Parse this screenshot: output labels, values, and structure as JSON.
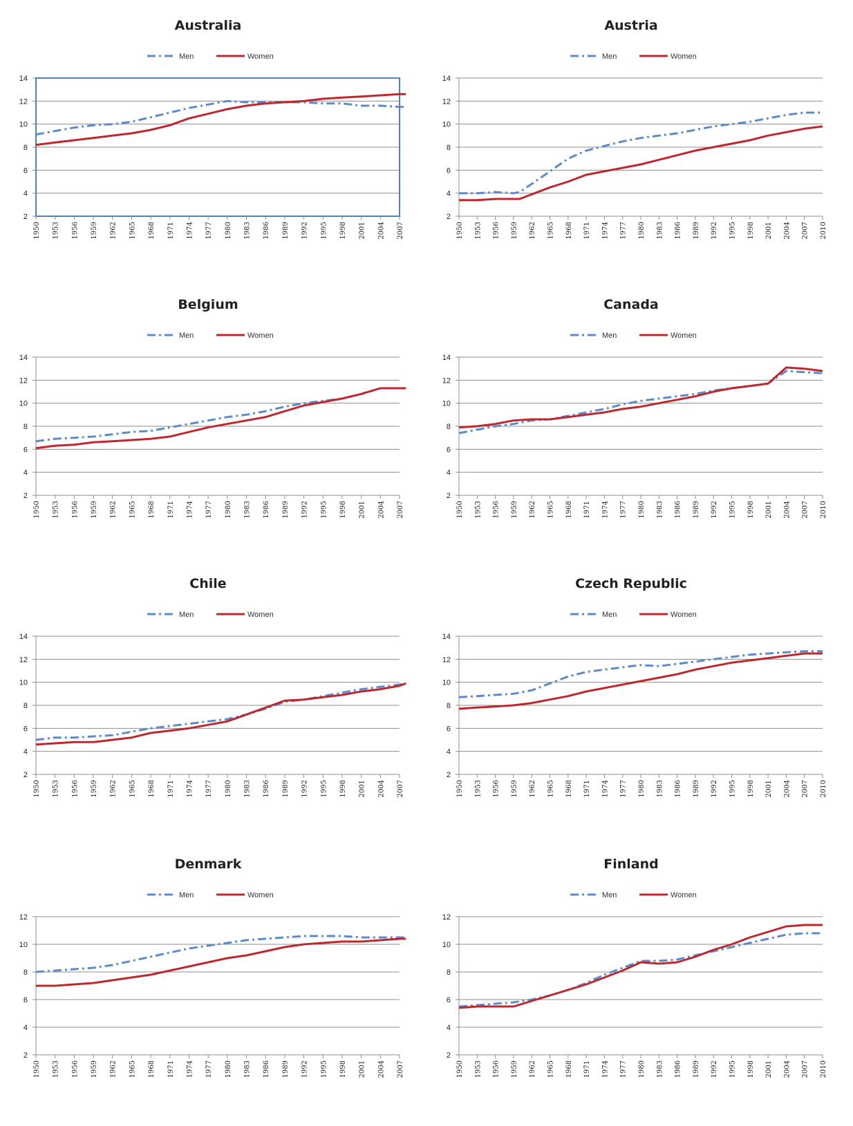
{
  "colors": {
    "men": "#5B8BCB",
    "women": "#C0272D",
    "grid": "#8C8C8C",
    "axis": "#8C8C8C",
    "frame": "#4F81BD"
  },
  "chart_data": [
    {
      "type": "line",
      "title": "Australia",
      "ylim": [
        2,
        14
      ],
      "yticks": [
        2,
        4,
        6,
        8,
        10,
        12,
        14
      ],
      "x_ticks": [
        1950,
        1953,
        1956,
        1959,
        1962,
        1965,
        1968,
        1971,
        1974,
        1977,
        1980,
        1983,
        1986,
        1989,
        1992,
        1995,
        1998,
        2001,
        2004,
        2007
      ],
      "legend": "top",
      "series": [
        {
          "name": "Men",
          "style": "dash-dot",
          "x": [
            1950,
            1953,
            1956,
            1959,
            1962,
            1965,
            1968,
            1971,
            1974,
            1977,
            1980,
            1983,
            1986,
            1989,
            1992,
            1995,
            1998,
            2001,
            2004,
            2007,
            2008
          ],
          "values": [
            9.1,
            9.4,
            9.7,
            9.9,
            10.0,
            10.2,
            10.6,
            11.0,
            11.4,
            11.7,
            12.0,
            11.9,
            11.9,
            11.9,
            11.9,
            11.8,
            11.8,
            11.6,
            11.6,
            11.5,
            11.5
          ]
        },
        {
          "name": "Women",
          "style": "solid",
          "x": [
            1950,
            1953,
            1956,
            1959,
            1962,
            1965,
            1968,
            1971,
            1974,
            1977,
            1980,
            1983,
            1986,
            1989,
            1992,
            1995,
            1998,
            2001,
            2004,
            2007,
            2008
          ],
          "values": [
            8.2,
            8.4,
            8.6,
            8.8,
            9.0,
            9.2,
            9.5,
            9.9,
            10.5,
            10.9,
            11.3,
            11.6,
            11.8,
            11.9,
            12.0,
            12.2,
            12.3,
            12.4,
            12.5,
            12.6,
            12.6
          ]
        }
      ]
    },
    {
      "type": "line",
      "title": "Austria",
      "ylim": [
        2,
        14
      ],
      "yticks": [
        2,
        4,
        6,
        8,
        10,
        12,
        14
      ],
      "x_ticks": [
        1950,
        1953,
        1956,
        1959,
        1962,
        1965,
        1968,
        1971,
        1974,
        1977,
        1980,
        1983,
        1986,
        1989,
        1992,
        1995,
        1998,
        2001,
        2004,
        2007,
        2010
      ],
      "legend": "top",
      "series": [
        {
          "name": "Men",
          "style": "dash-dot",
          "x": [
            1950,
            1953,
            1956,
            1959,
            1960,
            1962,
            1965,
            1968,
            1971,
            1974,
            1977,
            1980,
            1983,
            1986,
            1989,
            1992,
            1995,
            1998,
            2001,
            2004,
            2007,
            2010
          ],
          "values": [
            4.0,
            4.0,
            4.1,
            4.0,
            4.1,
            4.8,
            5.9,
            7.0,
            7.7,
            8.1,
            8.5,
            8.8,
            9.0,
            9.2,
            9.5,
            9.8,
            10.0,
            10.2,
            10.5,
            10.8,
            11.0,
            11.0
          ]
        },
        {
          "name": "Women",
          "style": "solid",
          "x": [
            1950,
            1953,
            1956,
            1959,
            1960,
            1962,
            1965,
            1968,
            1971,
            1974,
            1977,
            1980,
            1983,
            1986,
            1989,
            1992,
            1995,
            1998,
            2001,
            2004,
            2007,
            2010
          ],
          "values": [
            3.4,
            3.4,
            3.5,
            3.5,
            3.5,
            3.9,
            4.5,
            5.0,
            5.6,
            5.9,
            6.2,
            6.5,
            6.9,
            7.3,
            7.7,
            8.0,
            8.3,
            8.6,
            9.0,
            9.3,
            9.6,
            9.8
          ]
        }
      ]
    },
    {
      "type": "line",
      "title": "Belgium",
      "ylim": [
        2,
        14
      ],
      "yticks": [
        2,
        4,
        6,
        8,
        10,
        12,
        14
      ],
      "x_ticks": [
        1950,
        1953,
        1956,
        1959,
        1962,
        1965,
        1968,
        1971,
        1974,
        1977,
        1980,
        1983,
        1986,
        1989,
        1992,
        1995,
        1998,
        2001,
        2004,
        2007
      ],
      "legend": "top",
      "series": [
        {
          "name": "Men",
          "style": "dash-dot",
          "x": [
            1950,
            1953,
            1956,
            1959,
            1962,
            1965,
            1968,
            1971,
            1974,
            1977,
            1980,
            1983,
            1986,
            1989,
            1992,
            1995,
            1998,
            2001,
            2004,
            2007,
            2008
          ],
          "values": [
            6.7,
            6.9,
            7.0,
            7.1,
            7.3,
            7.5,
            7.6,
            7.9,
            8.2,
            8.5,
            8.8,
            9.0,
            9.3,
            9.7,
            10.0,
            10.2,
            10.4,
            10.8,
            11.3,
            11.3,
            11.3
          ]
        },
        {
          "name": "Women",
          "style": "solid",
          "x": [
            1950,
            1953,
            1956,
            1959,
            1962,
            1965,
            1968,
            1971,
            1974,
            1977,
            1980,
            1983,
            1986,
            1989,
            1992,
            1995,
            1998,
            2001,
            2004,
            2007,
            2008
          ],
          "values": [
            6.1,
            6.3,
            6.4,
            6.6,
            6.7,
            6.8,
            6.9,
            7.1,
            7.5,
            7.9,
            8.2,
            8.5,
            8.8,
            9.3,
            9.8,
            10.1,
            10.4,
            10.8,
            11.3,
            11.3,
            11.3
          ]
        }
      ]
    },
    {
      "type": "line",
      "title": "Canada",
      "ylim": [
        2,
        14
      ],
      "yticks": [
        2,
        4,
        6,
        8,
        10,
        12,
        14
      ],
      "x_ticks": [
        1950,
        1953,
        1956,
        1959,
        1962,
        1965,
        1968,
        1971,
        1974,
        1977,
        1980,
        1983,
        1986,
        1989,
        1992,
        1995,
        1998,
        2001,
        2004,
        2007,
        2010
      ],
      "legend": "top",
      "series": [
        {
          "name": "Men",
          "style": "dash-dot",
          "x": [
            1950,
            1953,
            1956,
            1959,
            1962,
            1965,
            1968,
            1971,
            1974,
            1977,
            1980,
            1983,
            1986,
            1989,
            1992,
            1995,
            1998,
            2001,
            2004,
            2007,
            2010
          ],
          "values": [
            7.4,
            7.7,
            8.0,
            8.2,
            8.5,
            8.6,
            8.9,
            9.2,
            9.5,
            9.9,
            10.2,
            10.4,
            10.6,
            10.8,
            11.1,
            11.3,
            11.5,
            11.7,
            12.8,
            12.7,
            12.6
          ]
        },
        {
          "name": "Women",
          "style": "solid",
          "x": [
            1950,
            1953,
            1956,
            1959,
            1962,
            1965,
            1968,
            1971,
            1974,
            1977,
            1980,
            1983,
            1986,
            1989,
            1992,
            1995,
            1998,
            2001,
            2004,
            2007,
            2010
          ],
          "values": [
            7.9,
            8.0,
            8.2,
            8.5,
            8.6,
            8.6,
            8.8,
            9.0,
            9.2,
            9.5,
            9.7,
            10.0,
            10.3,
            10.6,
            11.0,
            11.3,
            11.5,
            11.7,
            13.1,
            13.0,
            12.8
          ]
        }
      ]
    },
    {
      "type": "line",
      "title": "Chile",
      "ylim": [
        2,
        14
      ],
      "yticks": [
        2,
        4,
        6,
        8,
        10,
        12,
        14
      ],
      "x_ticks": [
        1950,
        1953,
        1956,
        1959,
        1962,
        1965,
        1968,
        1971,
        1974,
        1977,
        1980,
        1983,
        1986,
        1989,
        1992,
        1995,
        1998,
        2001,
        2004,
        2007
      ],
      "legend": "top",
      "series": [
        {
          "name": "Men",
          "style": "dash-dot",
          "x": [
            1950,
            1953,
            1956,
            1959,
            1962,
            1965,
            1968,
            1971,
            1974,
            1977,
            1980,
            1983,
            1986,
            1989,
            1992,
            1995,
            1998,
            2001,
            2004,
            2007,
            2008
          ],
          "values": [
            5.0,
            5.2,
            5.2,
            5.3,
            5.4,
            5.7,
            6.0,
            6.2,
            6.4,
            6.6,
            6.8,
            7.2,
            7.7,
            8.3,
            8.5,
            8.8,
            9.1,
            9.4,
            9.6,
            9.8,
            9.9
          ]
        },
        {
          "name": "Women",
          "style": "solid",
          "x": [
            1950,
            1953,
            1956,
            1959,
            1962,
            1965,
            1968,
            1971,
            1974,
            1977,
            1980,
            1983,
            1986,
            1989,
            1992,
            1995,
            1998,
            2001,
            2004,
            2007,
            2008
          ],
          "values": [
            4.6,
            4.7,
            4.8,
            4.8,
            5.0,
            5.2,
            5.6,
            5.8,
            6.0,
            6.3,
            6.6,
            7.2,
            7.8,
            8.4,
            8.5,
            8.7,
            8.9,
            9.2,
            9.4,
            9.7,
            9.9
          ]
        }
      ]
    },
    {
      "type": "line",
      "title": "Czech Republic",
      "ylim": [
        2,
        14
      ],
      "yticks": [
        2,
        4,
        6,
        8,
        10,
        12,
        14
      ],
      "x_ticks": [
        1950,
        1953,
        1956,
        1959,
        1962,
        1965,
        1968,
        1971,
        1974,
        1977,
        1980,
        1983,
        1986,
        1989,
        1992,
        1995,
        1998,
        2001,
        2004,
        2007,
        2010
      ],
      "legend": "top",
      "series": [
        {
          "name": "Men",
          "style": "dash-dot",
          "x": [
            1950,
            1953,
            1956,
            1959,
            1962,
            1965,
            1968,
            1971,
            1974,
            1977,
            1980,
            1983,
            1986,
            1989,
            1992,
            1995,
            1998,
            2001,
            2004,
            2007,
            2010
          ],
          "values": [
            8.7,
            8.8,
            8.9,
            9.0,
            9.3,
            9.9,
            10.5,
            10.9,
            11.1,
            11.3,
            11.5,
            11.4,
            11.6,
            11.8,
            12.0,
            12.2,
            12.4,
            12.5,
            12.6,
            12.7,
            12.7
          ]
        },
        {
          "name": "Women",
          "style": "solid",
          "x": [
            1950,
            1953,
            1956,
            1959,
            1962,
            1965,
            1968,
            1971,
            1974,
            1977,
            1980,
            1983,
            1986,
            1989,
            1992,
            1995,
            1998,
            2001,
            2004,
            2007,
            2010
          ],
          "values": [
            7.7,
            7.8,
            7.9,
            8.0,
            8.2,
            8.5,
            8.8,
            9.2,
            9.5,
            9.8,
            10.1,
            10.4,
            10.7,
            11.1,
            11.4,
            11.7,
            11.9,
            12.1,
            12.3,
            12.5,
            12.5
          ]
        }
      ]
    },
    {
      "type": "line",
      "title": "Denmark",
      "ylim": [
        2,
        12
      ],
      "yticks": [
        2,
        4,
        6,
        8,
        10,
        12
      ],
      "x_ticks": [
        1950,
        1953,
        1956,
        1959,
        1962,
        1965,
        1968,
        1971,
        1974,
        1977,
        1980,
        1983,
        1986,
        1989,
        1992,
        1995,
        1998,
        2001,
        2004,
        2007
      ],
      "legend": "top",
      "series": [
        {
          "name": "Men",
          "style": "dash-dot",
          "x": [
            1950,
            1953,
            1956,
            1959,
            1962,
            1965,
            1968,
            1971,
            1974,
            1977,
            1980,
            1983,
            1986,
            1989,
            1992,
            1995,
            1998,
            2001,
            2004,
            2007,
            2008
          ],
          "values": [
            8.0,
            8.1,
            8.2,
            8.3,
            8.5,
            8.8,
            9.1,
            9.4,
            9.7,
            9.9,
            10.1,
            10.3,
            10.4,
            10.5,
            10.6,
            10.6,
            10.6,
            10.5,
            10.5,
            10.5,
            10.5
          ]
        },
        {
          "name": "Women",
          "style": "solid",
          "x": [
            1950,
            1953,
            1956,
            1959,
            1962,
            1965,
            1968,
            1971,
            1974,
            1977,
            1980,
            1983,
            1986,
            1989,
            1992,
            1995,
            1998,
            2001,
            2004,
            2007,
            2008
          ],
          "values": [
            7.0,
            7.0,
            7.1,
            7.2,
            7.4,
            7.6,
            7.8,
            8.1,
            8.4,
            8.7,
            9.0,
            9.2,
            9.5,
            9.8,
            10.0,
            10.1,
            10.2,
            10.2,
            10.3,
            10.4,
            10.4
          ]
        }
      ]
    },
    {
      "type": "line",
      "title": "Finland",
      "ylim": [
        2,
        12
      ],
      "yticks": [
        2,
        4,
        6,
        8,
        10,
        12
      ],
      "x_ticks": [
        1950,
        1953,
        1956,
        1959,
        1962,
        1965,
        1968,
        1971,
        1974,
        1977,
        1980,
        1983,
        1986,
        1989,
        1992,
        1995,
        1998,
        2001,
        2004,
        2007,
        2010
      ],
      "legend": "top",
      "series": [
        {
          "name": "Men",
          "style": "dash-dot",
          "x": [
            1950,
            1953,
            1956,
            1959,
            1962,
            1965,
            1968,
            1971,
            1974,
            1977,
            1980,
            1983,
            1986,
            1989,
            1992,
            1995,
            1998,
            2001,
            2004,
            2007,
            2010
          ],
          "values": [
            5.5,
            5.6,
            5.7,
            5.8,
            6.0,
            6.3,
            6.7,
            7.2,
            7.8,
            8.3,
            8.8,
            8.8,
            8.9,
            9.2,
            9.5,
            9.8,
            10.1,
            10.4,
            10.7,
            10.8,
            10.8
          ]
        },
        {
          "name": "Women",
          "style": "solid",
          "x": [
            1950,
            1953,
            1956,
            1959,
            1962,
            1965,
            1968,
            1971,
            1974,
            1977,
            1980,
            1983,
            1986,
            1989,
            1992,
            1995,
            1998,
            2001,
            2004,
            2007,
            2010
          ],
          "values": [
            5.4,
            5.5,
            5.5,
            5.5,
            5.9,
            6.3,
            6.7,
            7.1,
            7.6,
            8.1,
            8.7,
            8.6,
            8.7,
            9.1,
            9.6,
            10.0,
            10.5,
            10.9,
            11.3,
            11.4,
            11.4
          ]
        }
      ]
    }
  ]
}
